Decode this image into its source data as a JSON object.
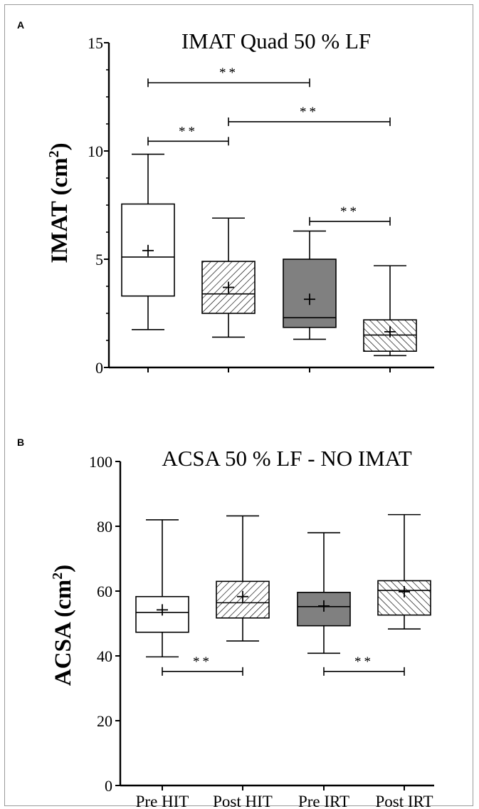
{
  "chart_data": [
    {
      "panel": "A",
      "type": "box",
      "title": "IMAT Quad 50 % LF",
      "ylabel": "IMAT (cm",
      "ylabel_sup": "2",
      "ylabel_end": ")",
      "ylim": [
        0,
        15
      ],
      "yticks": [
        "0",
        "5",
        "10",
        "15"
      ],
      "ytick_values": [
        0,
        5,
        10,
        15
      ],
      "minor_ticks": [
        1.25,
        2.5,
        3.75,
        6.25,
        7.5,
        8.75,
        11.25,
        12.5,
        13.75
      ],
      "categories": [
        "Pre HIT",
        "Post HIT",
        "Pre IRT",
        "Post IRT"
      ],
      "show_category_labels": false,
      "boxes": [
        {
          "category": "Pre HIT",
          "min": 1.75,
          "q1": 3.3,
          "median": 5.1,
          "q3": 7.55,
          "max": 9.85,
          "mean": 5.4,
          "fill": "white"
        },
        {
          "category": "Post HIT",
          "min": 1.4,
          "q1": 2.5,
          "median": 3.4,
          "q3": 4.9,
          "max": 6.9,
          "mean": 3.7,
          "fill": "hatch-right"
        },
        {
          "category": "Pre IRT",
          "min": 1.3,
          "q1": 1.85,
          "median": 2.3,
          "q3": 5.0,
          "max": 6.3,
          "mean": 3.15,
          "fill": "grey"
        },
        {
          "category": "Post IRT",
          "min": 0.55,
          "q1": 0.75,
          "median": 1.5,
          "q3": 2.2,
          "max": 4.7,
          "mean": 1.65,
          "fill": "hatch-left"
        }
      ],
      "significance": [
        {
          "from": 0,
          "to": 2,
          "y": 13.15,
          "label": "**"
        },
        {
          "from": 1,
          "to": 3,
          "y": 11.35,
          "label": "**"
        },
        {
          "from": 0,
          "to": 1,
          "y": 10.45,
          "label": "**"
        },
        {
          "from": 2,
          "to": 3,
          "y": 6.75,
          "label": "**"
        }
      ]
    },
    {
      "panel": "B",
      "type": "box",
      "title": "ACSA 50 % LF - NO IMAT",
      "ylabel": "ACSA (cm",
      "ylabel_sup": "2",
      "ylabel_end": ")",
      "ylim": [
        0,
        100
      ],
      "yticks": [
        "0",
        "20",
        "40",
        "60",
        "80",
        "100"
      ],
      "ytick_values": [
        0,
        20,
        40,
        60,
        80,
        100
      ],
      "minor_ticks": [],
      "categories": [
        "Pre HIT",
        "Post HIT",
        "Pre IRT",
        "Post IRT"
      ],
      "show_category_labels": true,
      "boxes": [
        {
          "category": "Pre HIT",
          "min": 39.7,
          "q1": 47.3,
          "median": 53.4,
          "q3": 58.3,
          "max": 82.0,
          "mean": 54.2,
          "fill": "white"
        },
        {
          "category": "Post HIT",
          "min": 44.6,
          "q1": 51.7,
          "median": 56.4,
          "q3": 63.0,
          "max": 83.2,
          "mean": 58.3,
          "fill": "hatch-right"
        },
        {
          "category": "Pre IRT",
          "min": 40.8,
          "q1": 49.3,
          "median": 55.2,
          "q3": 59.6,
          "max": 78.0,
          "mean": 55.4,
          "fill": "grey"
        },
        {
          "category": "Post IRT",
          "min": 48.3,
          "q1": 52.6,
          "median": 60.2,
          "q3": 63.2,
          "max": 83.6,
          "mean": 59.8,
          "fill": "hatch-left"
        }
      ],
      "significance": [
        {
          "from": 0,
          "to": 1,
          "y": 35.2,
          "label": "**"
        },
        {
          "from": 2,
          "to": 3,
          "y": 35.2,
          "label": "**"
        }
      ]
    }
  ]
}
